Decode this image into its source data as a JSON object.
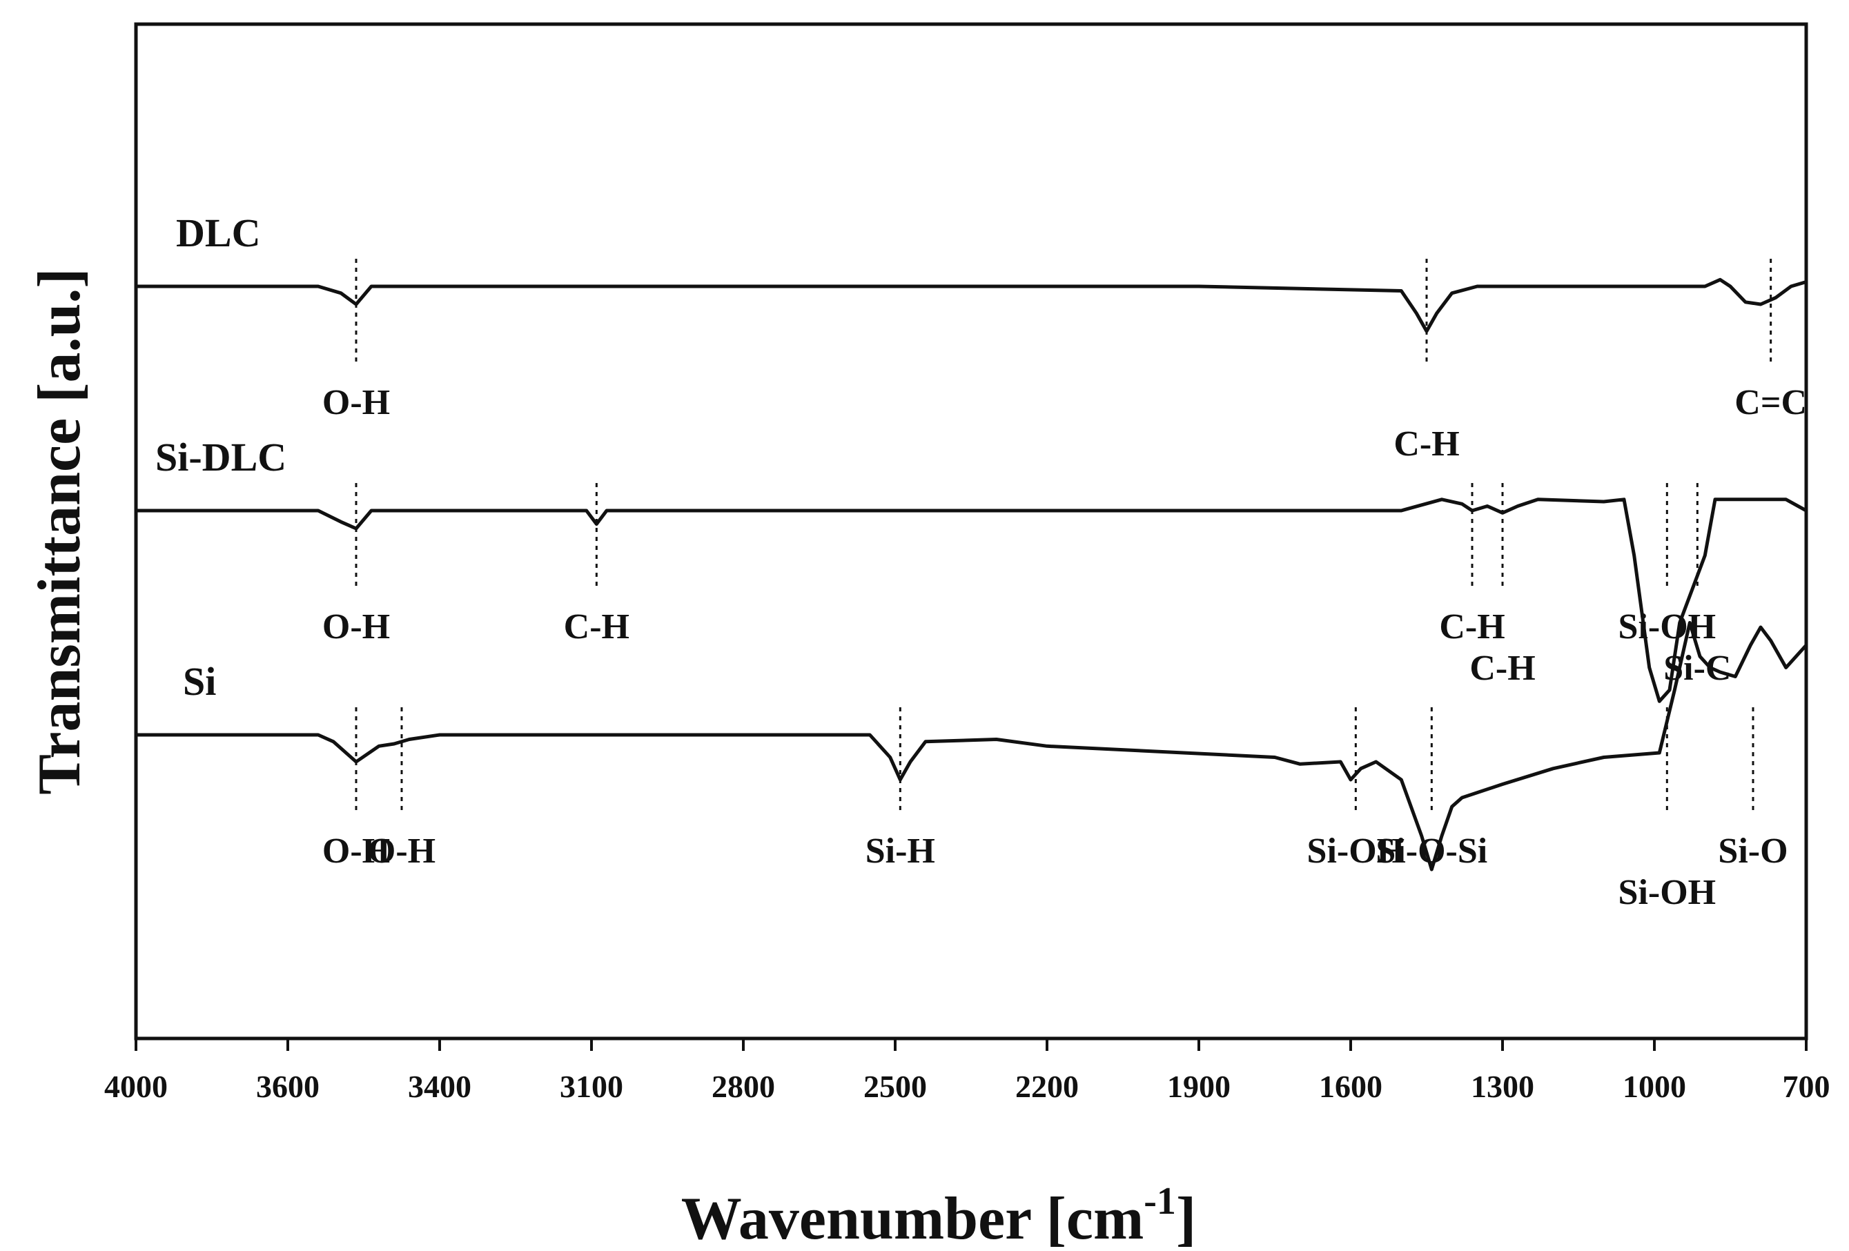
{
  "chart_data": {
    "type": "line",
    "title": "",
    "xlabel": "Wavenumber [cm",
    "xlabel_sup": "-1",
    "xlabel_end": "]",
    "ylabel": "Transmittance [a.u.]",
    "x_ticks": [
      "4000",
      "3600",
      "3400",
      "3100",
      "2800",
      "2500",
      "2200",
      "1900",
      "1600",
      "1300",
      "1000",
      "700"
    ],
    "x_tick_scale_note": "tick labels as printed; axis uses equally spaced ticks",
    "series": [
      {
        "name": "DLC",
        "offset": 2.0,
        "baseline_x": [
          4000,
          3560,
          3530,
          3510,
          3490,
          1900,
          1500,
          1470,
          1450,
          1430,
          1400,
          1350,
          1300,
          900,
          870,
          850,
          820,
          790,
          760,
          730,
          700
        ],
        "y": [
          0,
          0,
          -0.03,
          -0.08,
          0,
          0,
          -0.02,
          -0.12,
          -0.2,
          -0.12,
          -0.03,
          0,
          0,
          0,
          0.03,
          0,
          -0.07,
          -0.08,
          -0.05,
          0,
          0.02
        ],
        "peaks": [
          {
            "label": "O-H",
            "x": 3510
          },
          {
            "label": "C-H",
            "x": 1450
          },
          {
            "label": "C=C",
            "x": 770
          }
        ]
      },
      {
        "name": "Si-DLC",
        "offset": 1.0,
        "baseline_x": [
          4000,
          3560,
          3530,
          3510,
          3490,
          3110,
          3090,
          3070,
          1500,
          1420,
          1380,
          1360,
          1330,
          1300,
          1270,
          1230,
          1100,
          1060,
          1040,
          1010,
          990,
          970,
          950,
          925,
          900,
          880,
          860,
          800,
          740,
          700
        ],
        "y": [
          0,
          0,
          -0.05,
          -0.08,
          0,
          0,
          -0.06,
          0,
          0,
          0.05,
          0.03,
          0.0,
          0.02,
          -0.01,
          0.02,
          0.05,
          0.04,
          0.05,
          -0.2,
          -0.7,
          -0.85,
          -0.8,
          -0.5,
          -0.35,
          -0.2,
          0.05,
          0.05,
          0.05,
          0.05,
          0.0
        ],
        "peaks": [
          {
            "label": "O-H",
            "x": 3510
          },
          {
            "label": "C-H",
            "x": 3090
          },
          {
            "label": "C-H",
            "x": 1360
          },
          {
            "label": "C-H",
            "x": 1300
          },
          {
            "label": "Si-OH",
            "x": 975
          },
          {
            "label": "Si-C",
            "x": 915
          }
        ]
      },
      {
        "name": "Si",
        "offset": 0.0,
        "baseline_x": [
          4000,
          3560,
          3540,
          3510,
          3480,
          3460,
          3440,
          3400,
          2550,
          2510,
          2490,
          2470,
          2440,
          2300,
          2200,
          1750,
          1700,
          1620,
          1600,
          1580,
          1550,
          1500,
          1460,
          1440,
          1420,
          1400,
          1380,
          1300,
          1200,
          1100,
          990,
          960,
          930,
          910,
          890,
          870,
          840,
          810,
          790,
          770,
          740,
          720,
          700
        ],
        "y": [
          0,
          0,
          -0.03,
          -0.12,
          -0.05,
          -0.04,
          -0.02,
          0.0,
          0.0,
          -0.1,
          -0.2,
          -0.12,
          -0.03,
          -0.02,
          -0.05,
          -0.1,
          -0.13,
          -0.12,
          -0.2,
          -0.15,
          -0.12,
          -0.2,
          -0.45,
          -0.6,
          -0.45,
          -0.32,
          -0.28,
          -0.22,
          -0.15,
          -0.1,
          -0.08,
          0.2,
          0.5,
          0.35,
          0.3,
          0.28,
          0.26,
          0.4,
          0.48,
          0.42,
          0.3,
          0.35,
          0.4
        ],
        "peaks": [
          {
            "label": "O-H",
            "x": 3510
          },
          {
            "label": "O-H",
            "x": 3450
          },
          {
            "label": "Si-H",
            "x": 2490
          },
          {
            "label": "Si-OH",
            "x": 1590
          },
          {
            "label": "Si-O-Si",
            "x": 1440
          },
          {
            "label": "Si-OH",
            "x": 975
          },
          {
            "label": "Si-O",
            "x": 805
          }
        ]
      }
    ],
    "xlim": [
      4000,
      700
    ],
    "grid": false,
    "legend": "none"
  }
}
